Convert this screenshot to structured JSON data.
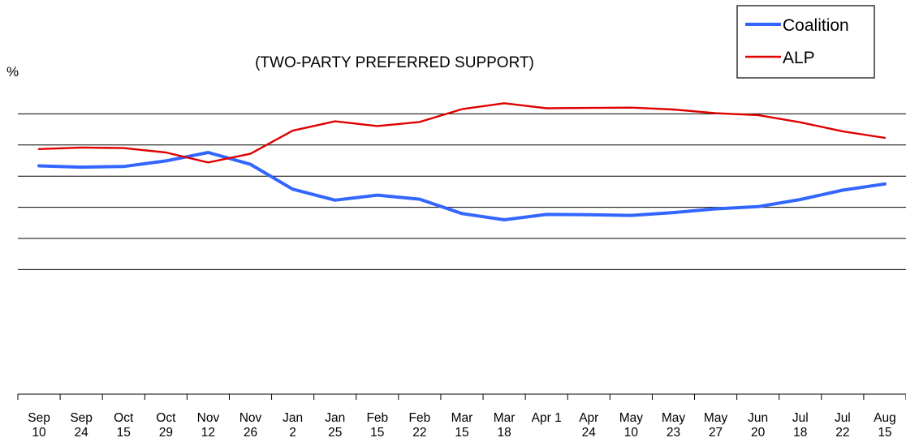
{
  "chart_data": {
    "type": "line",
    "title": "(TWO-PARTY PREFERRED SUPPORT)",
    "ylabel": "%",
    "xlabel": "",
    "categories": [
      [
        "Sep",
        "10"
      ],
      [
        "Sep",
        "24"
      ],
      [
        "Oct",
        "15"
      ],
      [
        "Oct",
        "29"
      ],
      [
        "Nov",
        "12"
      ],
      [
        "Nov",
        "26"
      ],
      [
        "Jan",
        "2"
      ],
      [
        "Jan",
        "25"
      ],
      [
        "Feb",
        "15"
      ],
      [
        "Feb",
        "22"
      ],
      [
        "Mar",
        "15"
      ],
      [
        "Mar",
        "18"
      ],
      [
        "Apr 1",
        ""
      ],
      [
        "Apr",
        "24"
      ],
      [
        "May",
        "10"
      ],
      [
        "May",
        "23"
      ],
      [
        "May",
        "27"
      ],
      [
        "Jun",
        "20"
      ],
      [
        "Jul",
        "18"
      ],
      [
        "Jul",
        "22"
      ],
      [
        "Aug",
        "15"
      ]
    ],
    "ylim": [
      0,
      100
    ],
    "gridlines": [
      40,
      50,
      60,
      70,
      80,
      90
    ],
    "y_tick_labels_visible": false,
    "legend_position": "top-right",
    "series": [
      {
        "name": "Coalition",
        "color": "#3366ff",
        "values": [
          73.3,
          72.9,
          73.1,
          74.9,
          77.6,
          73.8,
          65.8,
          62.3,
          63.9,
          62.6,
          58.0,
          56.0,
          57.7,
          57.6,
          57.4,
          58.3,
          59.5,
          60.2,
          62.5,
          65.5,
          67.5
        ]
      },
      {
        "name": "ALP",
        "color": "#e00000",
        "values": [
          78.7,
          79.2,
          79.0,
          77.6,
          74.4,
          77.2,
          84.6,
          87.6,
          86.1,
          87.4,
          91.5,
          93.4,
          91.8,
          91.9,
          92.0,
          91.4,
          90.2,
          89.6,
          87.3,
          84.4,
          82.3
        ]
      }
    ]
  }
}
